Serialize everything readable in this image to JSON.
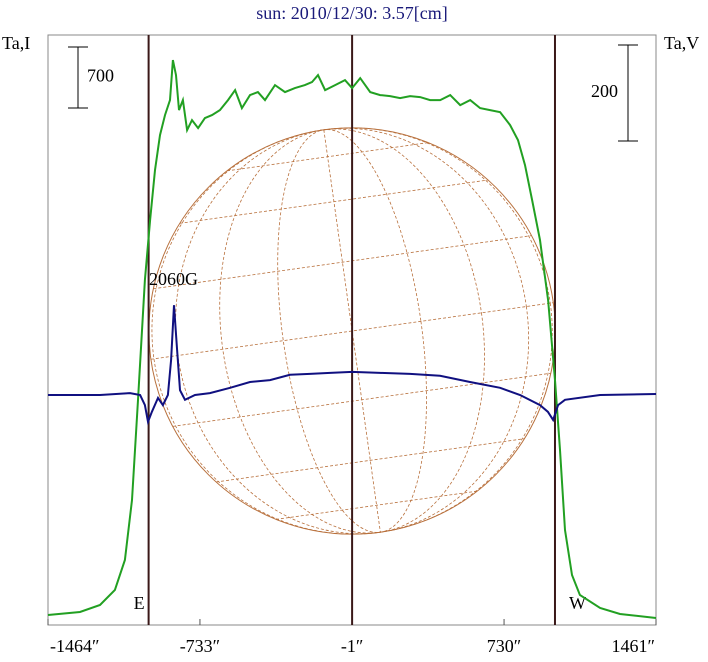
{
  "chart_data": {
    "type": "line",
    "title": "sun: 2010/12/30: 3.57[cm]",
    "y_label": "Ta,I",
    "y2_label": "Ta,V",
    "xlim": [
      -1464,
      1461
    ],
    "xticks": [
      {
        "value": -1464,
        "label": "-1464″"
      },
      {
        "value": -733,
        "label": "-733″"
      },
      {
        "value": -1,
        "label": "-1″"
      },
      {
        "value": 730,
        "label": "730″"
      },
      {
        "value": 1461,
        "label": "1461″"
      }
    ],
    "ylim": [
      0,
      6740
    ],
    "y2lim": [
      -473,
      750
    ],
    "scale_bars": [
      {
        "axis": "y",
        "value": 700
      },
      {
        "axis": "y2",
        "value": 200
      }
    ],
    "vlines": [
      {
        "x": -980,
        "label": "E"
      },
      {
        "x": -1
      },
      {
        "x": 975,
        "label": "W"
      }
    ],
    "annotations": [
      {
        "text": "2060G",
        "x": -860
      }
    ],
    "series": [
      {
        "color": "#22a022",
        "x": [
          -1464,
          -1310,
          -1214,
          -1142,
          -1094,
          -1060,
          -1031,
          -998,
          -973,
          -949,
          -925,
          -901,
          -877,
          -863,
          -848,
          -834,
          -815,
          -795,
          -771,
          -742,
          -709,
          -675,
          -637,
          -598,
          -564,
          -531,
          -492,
          -454,
          -420,
          -372,
          -324,
          -276,
          -228,
          -194,
          -165,
          -131,
          -83,
          -35,
          -1,
          38,
          86,
          134,
          182,
          230,
          278,
          326,
          374,
          423,
          471,
          519,
          567,
          615,
          663,
          711,
          759,
          797,
          831,
          865,
          903,
          942,
          975,
          999,
          1023,
          1057,
          1095,
          1192,
          1288,
          1461
        ],
        "values": [
          80,
          115,
          195,
          367,
          712,
          1401,
          2549,
          3926,
          4615,
          5189,
          5591,
          5820,
          5992,
          6452,
          6280,
          5878,
          5992,
          5648,
          5763,
          5671,
          5786,
          5820,
          5878,
          5992,
          6107,
          5901,
          6050,
          6084,
          5992,
          6165,
          6084,
          6130,
          6165,
          6199,
          6280,
          6107,
          6165,
          6222,
          6130,
          6245,
          6084,
          6050,
          6038,
          6015,
          6038,
          6027,
          5992,
          5992,
          6050,
          5935,
          5992,
          5901,
          5878,
          5855,
          5706,
          5533,
          5246,
          4845,
          4385,
          3696,
          2778,
          1975,
          1056,
          540,
          310,
          161,
          92,
          46
        ]
      },
      {
        "color": "#101080",
        "axis": "y2",
        "x": [
          -1464,
          -1214,
          -1069,
          -1021,
          -998,
          -983,
          -964,
          -935,
          -911,
          -887,
          -872,
          -858,
          -843,
          -829,
          -805,
          -757,
          -685,
          -588,
          -492,
          -396,
          -300,
          -204,
          -107,
          -1,
          133,
          278,
          422,
          566,
          711,
          807,
          903,
          941,
          966,
          990,
          1023,
          1192,
          1461
        ],
        "values": [
          0,
          0,
          4,
          0,
          -21,
          -56,
          -35,
          -6,
          -21,
          0,
          73,
          187,
          94,
          10,
          -10,
          0,
          4,
          15,
          27,
          31,
          42,
          44,
          46,
          48,
          46,
          44,
          40,
          27,
          15,
          0,
          -21,
          -35,
          -52,
          -21,
          -10,
          0,
          2
        ]
      }
    ]
  }
}
